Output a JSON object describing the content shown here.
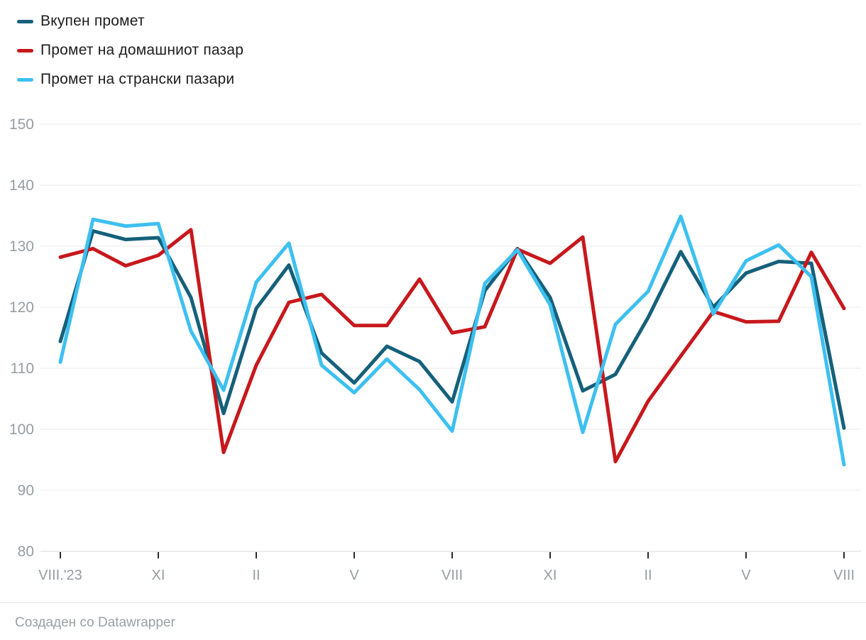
{
  "legend": {
    "items": [
      {
        "label": "Вкупен промет",
        "color": "#15607a"
      },
      {
        "label": "Промет на домашниот пазар",
        "color": "#c7181c"
      },
      {
        "label": "Промет на странски пазари",
        "color": "#3dc0f0"
      }
    ]
  },
  "footer": {
    "text": "Создаден со Datawrapper"
  },
  "chart_data": {
    "type": "line",
    "title": "",
    "xlabel": "",
    "ylabel": "",
    "ylim": [
      80,
      150
    ],
    "y_ticks": [
      80,
      90,
      100,
      110,
      120,
      130,
      140,
      150
    ],
    "grid": "horizontal",
    "legend_position": "top-left",
    "x_tick_labels": [
      "VIII.'23",
      "XI",
      "II",
      "V",
      "VIII",
      "XI",
      "II",
      "V",
      "VIII"
    ],
    "x_tick_point_indices": [
      0,
      3,
      6,
      9,
      12,
      15,
      18,
      21,
      24
    ],
    "x_range_note": "25 monthly points from VIII.2023 to VIII.2025",
    "series": [
      {
        "name": "Вкупен промет",
        "color": "#15607a",
        "values": [
          114.4,
          132.5,
          131.1,
          131.4,
          121.6,
          102.6,
          119.8,
          126.9,
          112.5,
          107.6,
          113.6,
          111.1,
          104.5,
          122.7,
          129.6,
          121.6,
          106.3,
          109.0,
          118.3,
          129.1,
          120.0,
          125.6,
          127.5,
          127.2,
          100.2
        ]
      },
      {
        "name": "Промет на домашниот пазар",
        "color": "#c7181c",
        "values": [
          128.2,
          129.6,
          126.8,
          128.5,
          132.7,
          96.2,
          110.5,
          120.8,
          122.1,
          117.0,
          117.0,
          124.6,
          115.8,
          116.8,
          129.5,
          127.2,
          131.5,
          94.7,
          104.6,
          112.0,
          119.3,
          117.6,
          117.7,
          129.0,
          119.8
        ]
      },
      {
        "name": "Промет на странски пазари",
        "color": "#3dc0f0",
        "values": [
          111.0,
          134.4,
          133.3,
          133.7,
          116.1,
          106.4,
          124.1,
          130.5,
          110.5,
          106.0,
          111.5,
          106.5,
          99.7,
          123.9,
          129.4,
          120.4,
          99.5,
          117.2,
          122.6,
          134.9,
          118.9,
          127.6,
          130.2,
          125.0,
          94.2
        ]
      }
    ],
    "style": {
      "gridline_color": "#e8e8e8",
      "baseline_color": "#d7d7d7",
      "tick_color": "#2b2b2b",
      "axis_label_color": "#969ca2",
      "line_width": 5
    }
  }
}
